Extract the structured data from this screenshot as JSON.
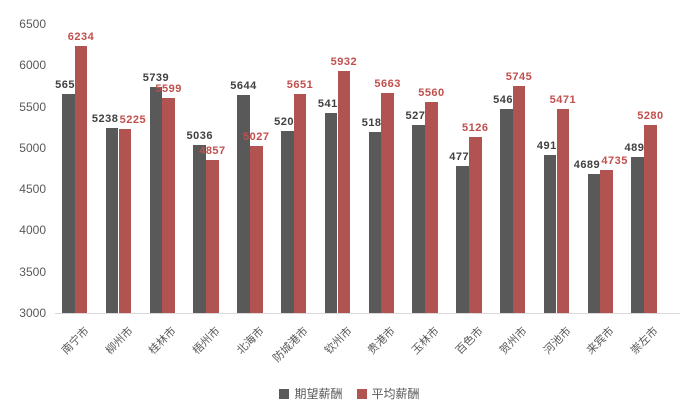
{
  "chart_data": {
    "type": "bar",
    "title": "",
    "xlabel": "",
    "ylabel": "",
    "categories": [
      "南宁市",
      "柳州市",
      "桂林市",
      "梧州市",
      "北海市",
      "防城港市",
      "钦州市",
      "贵港市",
      "玉林市",
      "百色市",
      "贺州市",
      "河池市",
      "来宾市",
      "崇左市"
    ],
    "series": [
      {
        "name": "期望薪酬",
        "color": "#595959",
        "label_color": "#404040",
        "values": [
          5655,
          5238,
          5739,
          5036,
          5644,
          5202,
          5418,
          5186,
          5275,
          4778,
          5467,
          4918,
          4689,
          4894
        ]
      },
      {
        "name": "平均薪酬",
        "color": "#b15350",
        "label_color": "#c0504d",
        "values": [
          6234,
          5225,
          5599,
          4857,
          5027,
          5651,
          5932,
          5663,
          5560,
          5126,
          5745,
          5471,
          4735,
          5280
        ]
      }
    ],
    "ylim": [
      3000,
      6500
    ],
    "ytick_interval": 500,
    "yticks": [
      "6500",
      "6000",
      "5500",
      "5000",
      "4500",
      "4000",
      "3500",
      "3000"
    ],
    "grid": false,
    "legend_position": "bottom",
    "colors": {
      "axis_text": "#595959",
      "baseline": "#d9d9d9",
      "background": "#ffffff"
    }
  }
}
